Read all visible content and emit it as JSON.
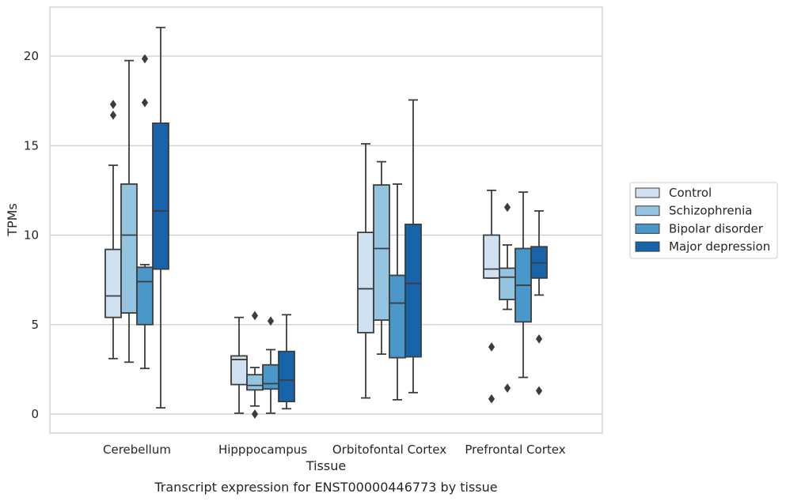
{
  "chart_data": {
    "type": "boxplot",
    "caption": "Transcript expression for ENST00000446773 by tissue",
    "xlabel": "Tissue",
    "ylabel": "TPMs",
    "ylim": [
      -1,
      22.5
    ],
    "yticks": [
      0,
      5,
      10,
      15,
      20
    ],
    "grid": "horizontal",
    "legend_position": "right",
    "categories": [
      "Cerebellum",
      "Hipppocampus",
      "Orbitofontal Cortex",
      "Prefrontal Cortex"
    ],
    "series": [
      {
        "name": "Control",
        "color": "#d0e1f2",
        "boxes": [
          {
            "whislo": 3.1,
            "q1": 5.4,
            "med": 6.6,
            "q3": 9.2,
            "whishi": 13.9,
            "fliers": [
              16.7,
              17.3
            ]
          },
          {
            "whislo": 0.05,
            "q1": 1.65,
            "med": 3.05,
            "q3": 3.25,
            "whishi": 5.4,
            "fliers": []
          },
          {
            "whislo": 0.9,
            "q1": 4.55,
            "med": 7.0,
            "q3": 10.15,
            "whishi": 15.1,
            "fliers": []
          },
          {
            "whislo": 7.6,
            "q1": 7.6,
            "med": 8.1,
            "q3": 10.0,
            "whishi": 12.5,
            "fliers": [
              0.85,
              3.75
            ]
          }
        ]
      },
      {
        "name": "Schizophrenia",
        "color": "#94c4df",
        "boxes": [
          {
            "whislo": 2.9,
            "q1": 5.65,
            "med": 10.0,
            "q3": 12.85,
            "whishi": 19.75,
            "fliers": []
          },
          {
            "whislo": 0.45,
            "q1": 1.35,
            "med": 1.6,
            "q3": 2.2,
            "whishi": 2.6,
            "fliers": [
              0.0,
              5.5
            ]
          },
          {
            "whislo": 3.35,
            "q1": 5.25,
            "med": 9.25,
            "q3": 12.8,
            "whishi": 14.1,
            "fliers": []
          },
          {
            "whislo": 5.85,
            "q1": 6.4,
            "med": 7.65,
            "q3": 8.15,
            "whishi": 9.45,
            "fliers": [
              1.45,
              11.55
            ]
          }
        ]
      },
      {
        "name": "Bipolar disorder",
        "color": "#4a98c9",
        "boxes": [
          {
            "whislo": 2.55,
            "q1": 5.0,
            "med": 7.4,
            "q3": 8.2,
            "whishi": 8.35,
            "fliers": [
              17.4,
              19.85
            ]
          },
          {
            "whislo": 0.05,
            "q1": 1.4,
            "med": 1.7,
            "q3": 2.75,
            "whishi": 3.6,
            "fliers": [
              5.2
            ]
          },
          {
            "whislo": 0.8,
            "q1": 3.15,
            "med": 6.2,
            "q3": 7.75,
            "whishi": 12.85,
            "fliers": []
          },
          {
            "whislo": 2.05,
            "q1": 5.15,
            "med": 7.2,
            "q3": 9.25,
            "whishi": 12.4,
            "fliers": []
          }
        ]
      },
      {
        "name": "Major depression",
        "color": "#1764ab",
        "boxes": [
          {
            "whislo": 0.35,
            "q1": 8.1,
            "med": 11.35,
            "q3": 16.25,
            "whishi": 21.6,
            "fliers": []
          },
          {
            "whislo": 0.3,
            "q1": 0.7,
            "med": 1.9,
            "q3": 3.5,
            "whishi": 5.55,
            "fliers": []
          },
          {
            "whislo": 1.2,
            "q1": 3.2,
            "med": 7.3,
            "q3": 10.6,
            "whishi": 17.55,
            "fliers": []
          },
          {
            "whislo": 6.65,
            "q1": 7.6,
            "med": 8.45,
            "q3": 9.35,
            "whishi": 11.35,
            "fliers": [
              1.3,
              4.2
            ]
          }
        ]
      }
    ]
  },
  "colors": {
    "grid": "#cccccc",
    "frame": "#cccccc",
    "edge": "#3d3d3d"
  }
}
